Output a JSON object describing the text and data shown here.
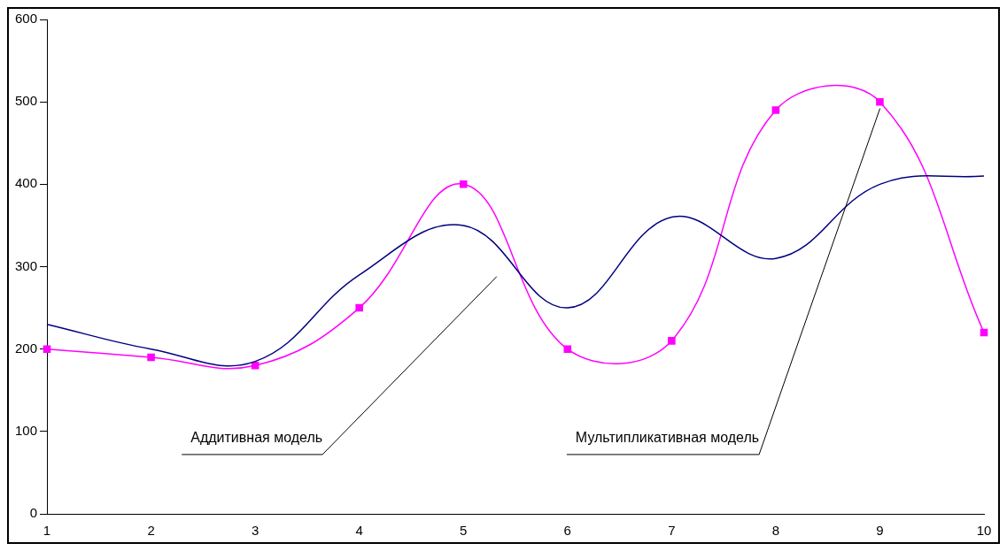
{
  "chart_data": {
    "type": "line",
    "categories": [
      "1",
      "2",
      "3",
      "4",
      "5",
      "6",
      "7",
      "8",
      "9",
      "10"
    ],
    "series": [
      {
        "color": "#000080",
        "marker": "none",
        "values": [
          230,
          200,
          185,
          290,
          350,
          250,
          360,
          310,
          400,
          410
        ]
      },
      {
        "color": "#ff00ff",
        "marker": "square",
        "values": [
          200,
          190,
          180,
          250,
          400,
          200,
          210,
          490,
          500,
          220
        ]
      }
    ],
    "ylim": [
      0,
      600
    ],
    "yticks": [
      0,
      100,
      200,
      300,
      400,
      500,
      600
    ],
    "grid": false,
    "legend": false,
    "annotations": [
      "Аддитивная модель",
      "Мультипликативная модель"
    ]
  }
}
